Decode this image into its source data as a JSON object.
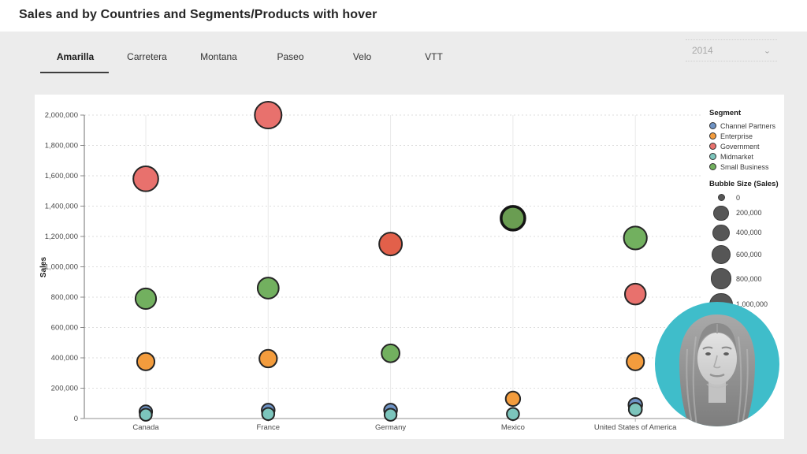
{
  "header": {
    "title": "Sales and by Countries and Segments/Products with hover"
  },
  "tabs": {
    "items": [
      "Amarilla",
      "Carretera",
      "Montana",
      "Paseo",
      "Velo",
      "VTT"
    ],
    "active_index": 0
  },
  "year_filter": {
    "value": "2014"
  },
  "chart_data": {
    "type": "scatter",
    "ylabel": "Sales",
    "xlabel": "",
    "ylim": [
      0,
      2000000
    ],
    "ytick_step": 200000,
    "grid": true,
    "legend_position": "right",
    "categories": [
      "Canada",
      "France",
      "Germany",
      "Mexico",
      "United States of America"
    ],
    "legend_title": "Segment",
    "segments": [
      {
        "name": "Channel Partners",
        "color": "#6e93c5"
      },
      {
        "name": "Enterprise",
        "color": "#f39c3d"
      },
      {
        "name": "Government",
        "color": "#e8716d"
      },
      {
        "name": "Midmarket",
        "color": "#7cc5bc"
      },
      {
        "name": "Small Business",
        "color": "#72b05f"
      }
    ],
    "size_legend": {
      "title": "Bubble Size (Sales)",
      "labels": [
        "0",
        "200,000",
        "400,000",
        "600,000",
        "800,000",
        "1,000,000"
      ],
      "values": [
        0,
        200000,
        400000,
        600000,
        800000,
        1000000
      ]
    },
    "points": [
      {
        "category": "Canada",
        "segment": "Government",
        "sales": 1580000
      },
      {
        "category": "Canada",
        "segment": "Small Business",
        "sales": 790000
      },
      {
        "category": "Canada",
        "segment": "Enterprise",
        "sales": 375000
      },
      {
        "category": "Canada",
        "segment": "Channel Partners",
        "sales": 45000
      },
      {
        "category": "Canada",
        "segment": "Midmarket",
        "sales": 25000
      },
      {
        "category": "France",
        "segment": "Government",
        "sales": 2000000
      },
      {
        "category": "France",
        "segment": "Small Business",
        "sales": 860000
      },
      {
        "category": "France",
        "segment": "Enterprise",
        "sales": 395000
      },
      {
        "category": "France",
        "segment": "Channel Partners",
        "sales": 55000
      },
      {
        "category": "France",
        "segment": "Midmarket",
        "sales": 30000
      },
      {
        "category": "Germany",
        "segment": "Government",
        "sales": 1150000,
        "color_override": "#e2604a"
      },
      {
        "category": "Germany",
        "segment": "Small Business",
        "sales": 430000
      },
      {
        "category": "Germany",
        "segment": "Channel Partners",
        "sales": 55000
      },
      {
        "category": "Germany",
        "segment": "Midmarket",
        "sales": 25000
      },
      {
        "category": "Mexico",
        "segment": "Small Business",
        "sales": 1320000,
        "hovered": true,
        "color_override": "#6a9d52"
      },
      {
        "category": "Mexico",
        "segment": "Enterprise",
        "sales": 130000
      },
      {
        "category": "Mexico",
        "segment": "Midmarket",
        "sales": 30000
      },
      {
        "category": "United States of America",
        "segment": "Small Business",
        "sales": 1190000
      },
      {
        "category": "United States of America",
        "segment": "Government",
        "sales": 820000
      },
      {
        "category": "United States of America",
        "segment": "Enterprise",
        "sales": 375000
      },
      {
        "category": "United States of America",
        "segment": "Channel Partners",
        "sales": 90000
      },
      {
        "category": "United States of America",
        "segment": "Midmarket",
        "sales": 60000
      }
    ]
  },
  "webcam": {
    "bg_color": "#3fbdca"
  }
}
